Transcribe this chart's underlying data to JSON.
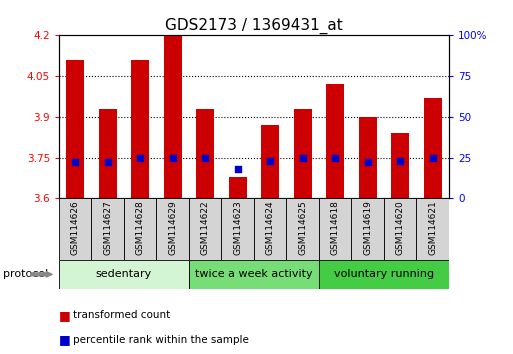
{
  "title": "GDS2173 / 1369431_at",
  "samples": [
    "GSM114626",
    "GSM114627",
    "GSM114628",
    "GSM114629",
    "GSM114622",
    "GSM114623",
    "GSM114624",
    "GSM114625",
    "GSM114618",
    "GSM114619",
    "GSM114620",
    "GSM114621"
  ],
  "bar_values": [
    4.11,
    3.93,
    4.11,
    4.2,
    3.93,
    3.68,
    3.87,
    3.93,
    4.02,
    3.9,
    3.84,
    3.97
  ],
  "dot_values_pct": [
    22,
    22,
    25,
    25,
    25,
    18,
    23,
    25,
    25,
    22,
    23,
    25
  ],
  "ylim": [
    3.6,
    4.2
  ],
  "y2lim": [
    0,
    100
  ],
  "yticks": [
    3.6,
    3.75,
    3.9,
    4.05,
    4.2
  ],
  "ytick_labels": [
    "3.6",
    "3.75",
    "3.9",
    "4.05",
    "4.2"
  ],
  "y2ticks": [
    0,
    25,
    50,
    75,
    100
  ],
  "y2tick_labels": [
    "0",
    "25",
    "50",
    "75",
    "100%"
  ],
  "bar_color": "#cc0000",
  "dot_color": "#0000cc",
  "bar_bottom": 3.6,
  "groups": [
    {
      "label": "sedentary",
      "start": 0,
      "end": 4,
      "color": "#d4f5d4"
    },
    {
      "label": "twice a week activity",
      "start": 4,
      "end": 8,
      "color": "#77dd77"
    },
    {
      "label": "voluntary running",
      "start": 8,
      "end": 12,
      "color": "#44cc44"
    }
  ],
  "protocol_label": "protocol",
  "legend_bar_label": "transformed count",
  "legend_dot_label": "percentile rank within the sample",
  "title_fontsize": 11,
  "tick_fontsize": 7.5,
  "sample_label_fontsize": 6.5,
  "group_label_fontsize": 8
}
